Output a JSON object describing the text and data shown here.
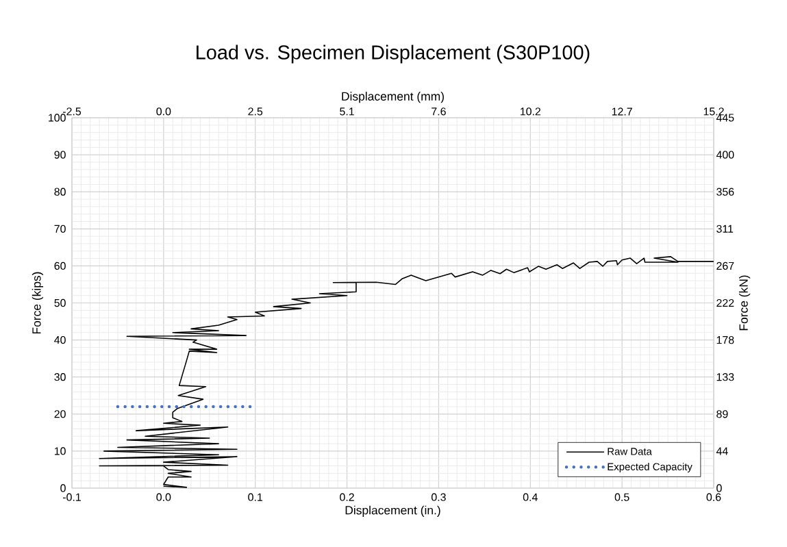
{
  "chart_data": {
    "type": "line",
    "title": "Load vs. Specimen Displacement (S30P100)",
    "xlabel": "Displacement (in.)",
    "ylabel": "Force (kips)",
    "x2label": "Displacement (mm)",
    "y2label": "Force (kN)",
    "xlim": [
      -0.1,
      0.6
    ],
    "xticks": [
      -0.1,
      {
        "value": 0,
        "label": "0.0"
      },
      0.1,
      0.2,
      0.3,
      0.4,
      0.5,
      0.6
    ],
    "ylim": [
      0,
      100
    ],
    "yticks": [
      0,
      10,
      20,
      30,
      40,
      50,
      60,
      70,
      80,
      90,
      100
    ],
    "x2lim": [
      -2.54,
      15.24
    ],
    "x2ticks": [
      {
        "value": -2.54,
        "label": "-2.5"
      },
      {
        "value": 0,
        "label": "0.0"
      },
      {
        "value": 2.54,
        "label": "2.5"
      },
      {
        "value": 5.08,
        "label": "5.1"
      },
      {
        "value": 7.62,
        "label": "7.6"
      },
      {
        "value": 10.16,
        "label": "10.2"
      },
      {
        "value": 12.7,
        "label": "12.7"
      },
      {
        "value": 15.24,
        "label": "15.2"
      }
    ],
    "y2lim": [
      0,
      444.82
    ],
    "y2ticks": [
      0,
      {
        "value": 44.48,
        "label": "44"
      },
      {
        "value": 88.96,
        "label": "89"
      },
      {
        "value": 133.45,
        "label": "133"
      },
      {
        "value": 177.93,
        "label": "178"
      },
      {
        "value": 222.41,
        "label": "222"
      },
      {
        "value": 266.89,
        "label": "267"
      },
      {
        "value": 311.38,
        "label": "311"
      },
      {
        "value": 355.86,
        "label": "356"
      },
      {
        "value": 400.34,
        "label": "400"
      },
      {
        "value": 444.82,
        "label": "445"
      }
    ],
    "grid": true,
    "legend": "bottom right",
    "marker": "none",
    "series": [
      {
        "name": "Raw Data",
        "color": "#000000",
        "line_style": "solid",
        "x": [
          0.0,
          0.025,
          0.0,
          0.005,
          0.03,
          0.005,
          0.03,
          0.005,
          0.0,
          -0.07,
          0.07,
          0.0,
          0.08,
          -0.07,
          0.06,
          -0.065,
          0.08,
          -0.05,
          0.06,
          -0.04,
          0.05,
          -0.02,
          0.07,
          -0.03,
          0.04,
          0.0,
          0.02,
          0.01,
          0.01,
          0.015,
          0.043,
          0.016,
          0.046,
          0.017,
          0.025,
          0.028,
          0.058,
          0.028,
          0.058,
          0.032,
          0.036,
          -0.04,
          0.09,
          0.01,
          0.06,
          0.03,
          0.06,
          0.08,
          0.07,
          0.11,
          0.1,
          0.15,
          0.12,
          0.16,
          0.14,
          0.2,
          0.17,
          0.21,
          0.21,
          0.185,
          0.232,
          0.253,
          0.26,
          0.27,
          0.286,
          0.314,
          0.318,
          0.337,
          0.348,
          0.357,
          0.367,
          0.374,
          0.382,
          0.397,
          0.399,
          0.409,
          0.417,
          0.429,
          0.435,
          0.447,
          0.454,
          0.464,
          0.473,
          0.479,
          0.484,
          0.494,
          0.495,
          0.5,
          0.509,
          0.516,
          0.524,
          0.525,
          0.561,
          0.535,
          0.553,
          0.561,
          0.6
        ],
        "values": [
          0.5,
          0.2,
          1,
          3,
          3,
          4,
          4.5,
          5,
          6,
          6,
          6.2,
          7,
          8.5,
          8,
          9,
          10,
          10.5,
          11,
          12,
          13,
          13.5,
          14,
          16.5,
          15.5,
          17,
          17.5,
          18,
          19,
          20.5,
          21.5,
          24,
          25,
          27.4,
          27.7,
          34.4,
          37,
          36.6,
          37.5,
          37.5,
          39.4,
          40,
          41,
          41.2,
          42,
          42.5,
          43,
          44,
          45.5,
          46.2,
          46.5,
          47.5,
          48.5,
          49,
          50,
          51,
          52,
          52.5,
          53,
          55.5,
          55.5,
          55.6,
          55,
          56.5,
          57.5,
          56,
          58,
          57,
          58.4,
          57.5,
          58.8,
          57.9,
          59.1,
          58.2,
          59.5,
          58.4,
          59.9,
          59.1,
          60.3,
          59.3,
          60.8,
          59.3,
          61,
          61.2,
          59.9,
          61.2,
          61.4,
          60.3,
          61.6,
          62.1,
          60.6,
          62.1,
          61,
          61,
          62.1,
          62.5,
          61.2,
          61.2
        ]
      },
      {
        "name": "Expected Capacity",
        "color": "#4472c4",
        "line_style": "dotted",
        "x": [
          -0.05,
          0.095
        ],
        "values": [
          22,
          22
        ]
      }
    ]
  }
}
